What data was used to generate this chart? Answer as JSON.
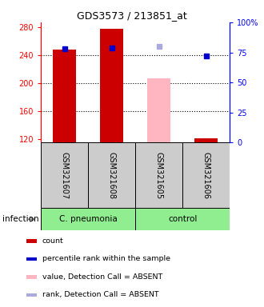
{
  "title": "GDS3573 / 213851_at",
  "samples": [
    "GSM321607",
    "GSM321608",
    "GSM321605",
    "GSM321606"
  ],
  "ylim_left": [
    115,
    287
  ],
  "ylim_right": [
    0,
    100
  ],
  "yticks_left": [
    120,
    160,
    200,
    240,
    280
  ],
  "yticks_right": [
    0,
    25,
    50,
    75,
    100
  ],
  "bar_values": [
    248,
    278,
    207,
    121
  ],
  "bar_colors": [
    "#CC0000",
    "#CC0000",
    "#FFB6C1",
    "#CC0000"
  ],
  "bar_absent": [
    false,
    false,
    true,
    false
  ],
  "rank_values": [
    78,
    79,
    null,
    72
  ],
  "rank_colors": [
    "#0000CC",
    "#0000CC",
    null,
    "#0000CC"
  ],
  "rank_absent_values": [
    null,
    null,
    80,
    null
  ],
  "rank_absent_color": "#AAAADD",
  "dotted_yticks": [
    160,
    200,
    240
  ],
  "group1_label": "C. pneumonia",
  "group2_label": "control",
  "group_color": "#90EE90",
  "infection_label": "infection",
  "legend_items": [
    {
      "label": "count",
      "color": "#CC0000"
    },
    {
      "label": "percentile rank within the sample",
      "color": "#0000CC"
    },
    {
      "label": "value, Detection Call = ABSENT",
      "color": "#FFB6C1"
    },
    {
      "label": "rank, Detection Call = ABSENT",
      "color": "#AAAADD"
    }
  ],
  "sample_box_color": "#CCCCCC",
  "bar_width": 0.5
}
